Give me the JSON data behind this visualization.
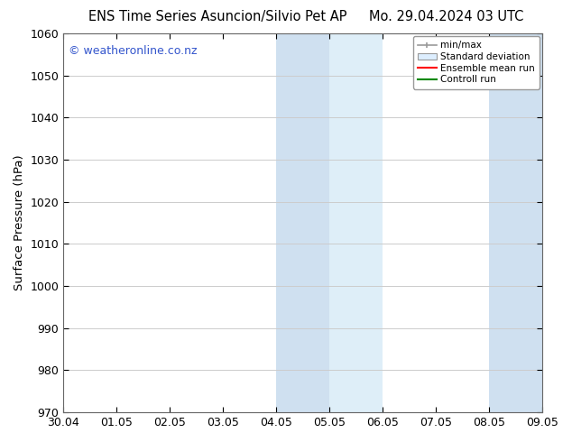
{
  "title_left": "ENS Time Series Asuncion/Silvio Pet AP",
  "title_right": "Mo. 29.04.2024 03 UTC",
  "ylabel": "Surface Pressure (hPa)",
  "ylim": [
    970,
    1060
  ],
  "yticks": [
    970,
    980,
    990,
    1000,
    1010,
    1020,
    1030,
    1040,
    1050,
    1060
  ],
  "xlabels": [
    "30.04",
    "01.05",
    "02.05",
    "03.05",
    "04.05",
    "05.05",
    "06.05",
    "07.05",
    "08.05",
    "09.05"
  ],
  "xvalues": [
    0,
    1,
    2,
    3,
    4,
    5,
    6,
    7,
    8,
    9
  ],
  "shaded_regions": [
    {
      "xmin": 4.0,
      "xmax": 5.0,
      "color": "#cfe0f0"
    },
    {
      "xmin": 5.0,
      "xmax": 6.0,
      "color": "#deeef8"
    },
    {
      "xmin": 8.0,
      "xmax": 9.0,
      "color": "#cfe0f0"
    },
    {
      "xmin": 9.0,
      "xmax": 9.5,
      "color": "#deeef8"
    }
  ],
  "watermark_text": "© weatheronline.co.nz",
  "watermark_color": "#3355cc",
  "watermark_fontsize": 9,
  "legend_labels": [
    "min/max",
    "Standard deviation",
    "Ensemble mean run",
    "Controll run"
  ],
  "legend_line_colors": [
    "#999999",
    "#ccddee",
    "#ff0000",
    "#008800"
  ],
  "background_color": "#ffffff",
  "grid_color": "#cccccc",
  "tick_label_fontsize": 9,
  "title_fontsize": 10.5,
  "ylabel_fontsize": 9.5,
  "spine_color": "#666666"
}
